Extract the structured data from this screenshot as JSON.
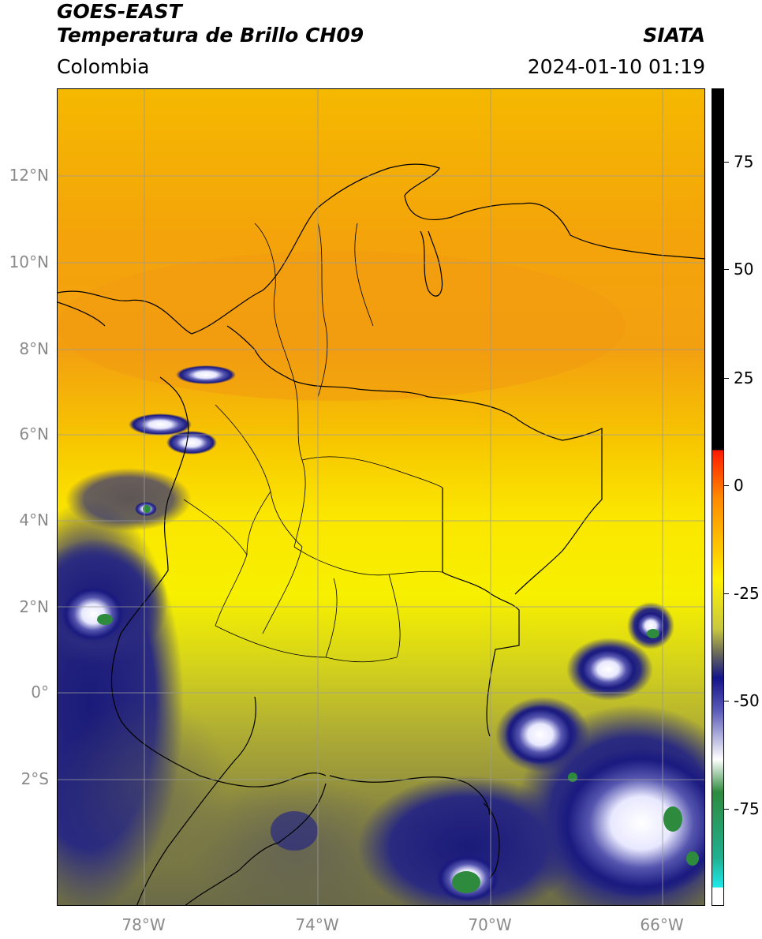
{
  "header": {
    "satellite": "GOES-EAST",
    "product": "Temperatura de Brillo CH09",
    "org": "SIATA",
    "region": "Colombia",
    "datetime": "2024-01-10 01:19"
  },
  "map": {
    "lat_labels": [
      "12°N",
      "10°N",
      "8°N",
      "6°N",
      "4°N",
      "2°N",
      "0°",
      "2°S"
    ],
    "lon_labels": [
      "78°W",
      "74°W",
      "70°W",
      "66°W"
    ],
    "colors": {
      "warm_orange": "#f4a20a",
      "yellow": "#fff200",
      "olive": "#a8a83a",
      "navy": "#1a1a7a",
      "white": "#ffffff",
      "green": "#2e8b3e",
      "grid": "#9a9a9a",
      "border": "#000000"
    }
  },
  "colorbar": {
    "ticks": [
      "75",
      "50",
      "25",
      "0",
      "-25",
      "-50",
      "-75"
    ],
    "colors": [
      "#000000",
      "#ff0000",
      "#ffa500",
      "#fff200",
      "#a0a030",
      "#1a1a8c",
      "#ffffff",
      "#2e8b3e",
      "#20e0e0"
    ]
  }
}
